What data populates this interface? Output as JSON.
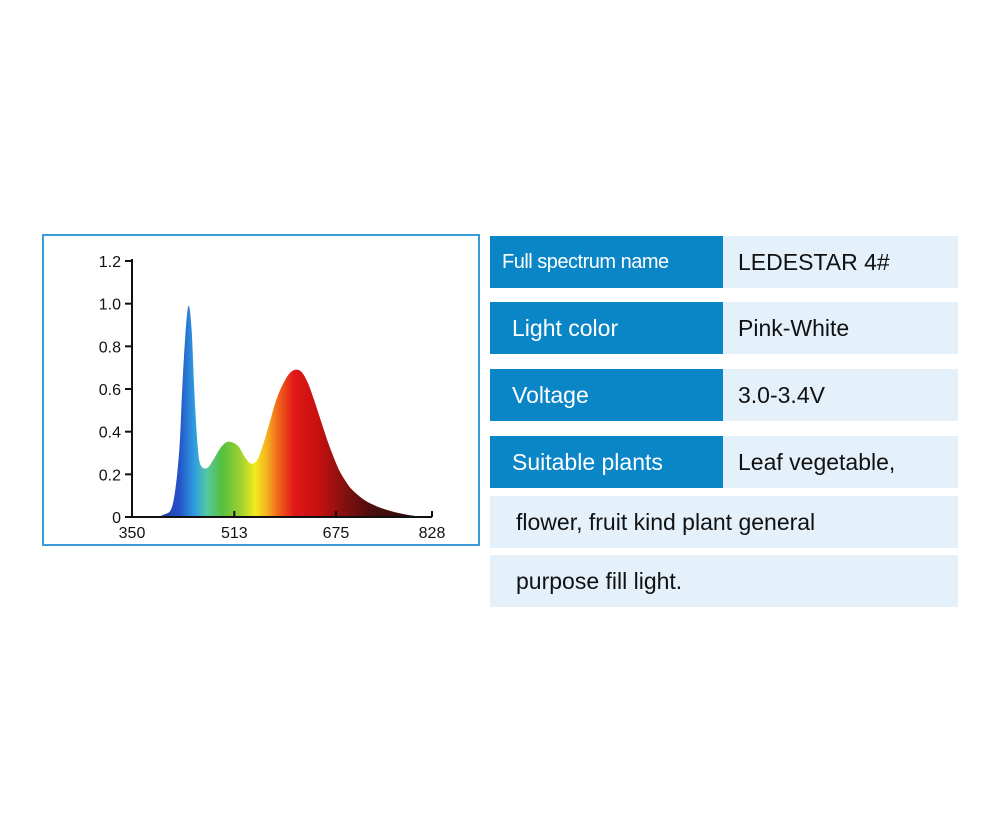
{
  "chart_data": {
    "type": "area",
    "title": "",
    "xlabel": "",
    "ylabel": "",
    "xlim": [
      350,
      828
    ],
    "ylim": [
      0,
      1.2
    ],
    "x_ticks": [
      "350",
      "513",
      "675",
      "828"
    ],
    "y_ticks": [
      "0",
      "0.2",
      "0.4",
      "0.6",
      "0.8",
      "1.0",
      "1.2"
    ],
    "grid": false,
    "fill": "visible-spectrum-gradient",
    "x": [
      375,
      400,
      415,
      425,
      430,
      435,
      440,
      445,
      450,
      455,
      460,
      470,
      480,
      490,
      500,
      510,
      520,
      530,
      540,
      550,
      560,
      570,
      580,
      590,
      600,
      610,
      620,
      630,
      640,
      650,
      660,
      670,
      680,
      690,
      700,
      720,
      740,
      760,
      780,
      800,
      815
    ],
    "values": [
      0,
      0.01,
      0.06,
      0.3,
      0.6,
      0.85,
      0.99,
      0.88,
      0.55,
      0.32,
      0.24,
      0.23,
      0.27,
      0.32,
      0.35,
      0.35,
      0.33,
      0.28,
      0.25,
      0.27,
      0.35,
      0.45,
      0.55,
      0.62,
      0.67,
      0.69,
      0.68,
      0.63,
      0.55,
      0.46,
      0.37,
      0.29,
      0.22,
      0.17,
      0.13,
      0.08,
      0.05,
      0.03,
      0.015,
      0.005,
      0
    ]
  },
  "specs": [
    {
      "label": "Full spectrum name",
      "value": "LEDESTAR 4#"
    },
    {
      "label": "Light color",
      "value": "Pink-White"
    },
    {
      "label": "Voltage",
      "value": "3.0-3.4V"
    },
    {
      "label": "Suitable plants",
      "value": "Leaf vegetable,"
    }
  ],
  "spec_continuation": [
    "flower, fruit kind plant general",
    "purpose fill light."
  ],
  "colors": {
    "label_bg": "#0a86c7",
    "row_bg": "#e4f1fb",
    "chart_border": "#3a9bd8"
  }
}
